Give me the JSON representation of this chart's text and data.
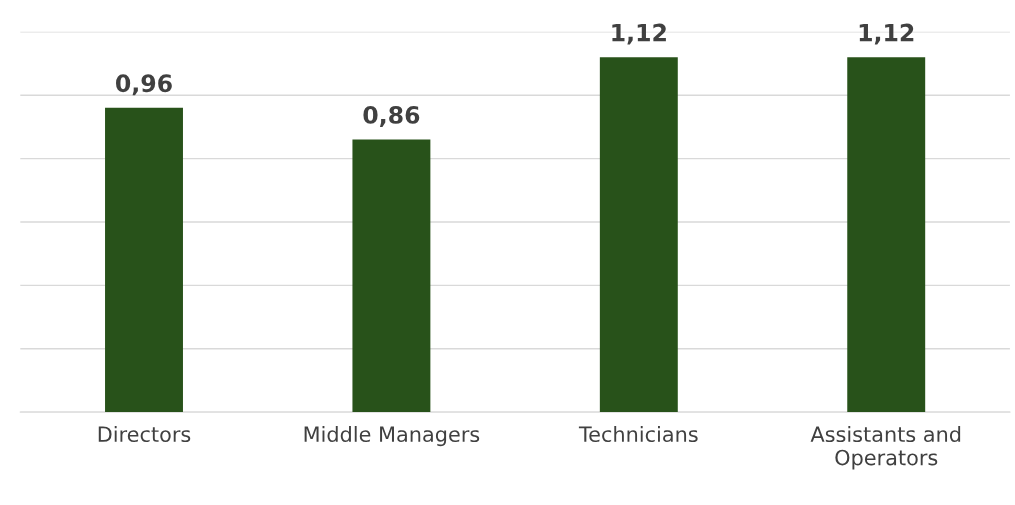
{
  "chart_data": {
    "type": "bar",
    "categories": [
      "Directors",
      "Middle Managers",
      "Technicians",
      "Assistants and\nOperators"
    ],
    "values": [
      0.96,
      0.86,
      1.12,
      1.12
    ],
    "value_labels": [
      "0,96",
      "0,86",
      "1,12",
      "1,12"
    ],
    "color": "#28521a",
    "ylim": [
      0,
      1.2
    ],
    "yticks": [
      {
        "value": 0,
        "label": null
      },
      {
        "value": 0.2,
        "label": null
      },
      {
        "value": 0.4,
        "label": null
      },
      {
        "value": 0.6,
        "label": null
      },
      {
        "value": 0.8,
        "label": null
      },
      {
        "value": 1.0,
        "label": null
      },
      {
        "value": 1.2,
        "label": null
      }
    ],
    "tick_labels": "x",
    "grid": "y",
    "legend": false
  }
}
